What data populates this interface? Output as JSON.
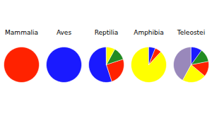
{
  "chart_data": [
    {
      "type": "pie",
      "title": "Mammalia",
      "values": [
        1
      ],
      "colors": [
        "#ff2200"
      ]
    },
    {
      "type": "pie",
      "title": "Aves",
      "values": [
        1
      ],
      "colors": [
        "#1a1aff"
      ]
    },
    {
      "type": "pie",
      "title": "Reptilia",
      "values": [
        0.55,
        0.25,
        0.12,
        0.08
      ],
      "colors": [
        "#1a1aff",
        "#ff2200",
        "#228B22",
        "#ffff00"
      ]
    },
    {
      "type": "pie",
      "title": "Amphibia",
      "values": [
        0.88,
        0.06,
        0.06
      ],
      "colors": [
        "#ffff00",
        "#ff2200",
        "#1a1aff"
      ]
    },
    {
      "type": "pie",
      "title": "Teleostei",
      "values": [
        0.42,
        0.22,
        0.14,
        0.12,
        0.1
      ],
      "colors": [
        "#9988bb",
        "#ffff00",
        "#ff2200",
        "#228B22",
        "#1a1aff"
      ]
    }
  ]
}
